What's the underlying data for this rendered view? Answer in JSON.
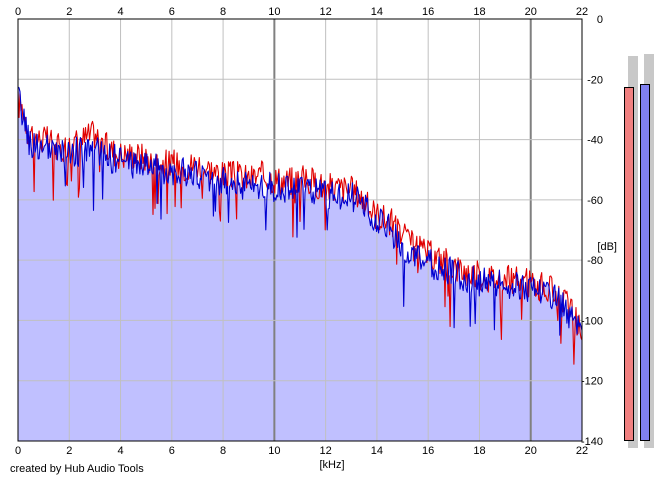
{
  "credit_text": "created by Hub Audio Tools",
  "colors": {
    "background": "#ffffff",
    "plot_border": "#000000",
    "grid": "#c0c0c0",
    "grid_major": "#808080",
    "fill": "#c0c0ff",
    "left_channel": "#e00000",
    "right_channel": "#0000d0",
    "meter_left": "#f08080",
    "meter_right": "#8080f0"
  },
  "chart_data": {
    "type": "line",
    "title": "",
    "xlabel": "[kHz]",
    "ylabel": "[dB]",
    "xlim": [
      0,
      22
    ],
    "ylim": [
      -140,
      0
    ],
    "x_ticks": [
      "0",
      "2",
      "4",
      "6",
      "8",
      "10",
      "12",
      "14",
      "16",
      "18",
      "20",
      "22"
    ],
    "y_ticks": [
      "0",
      "-20",
      "-40",
      "-60",
      "-80",
      "-100",
      "-120",
      "-140"
    ],
    "grid": true,
    "series": [
      {
        "channel": "left",
        "color": "#e00000",
        "x": [
          0,
          0.2,
          0.4,
          0.6,
          0.8,
          1,
          1.3,
          1.6,
          2,
          2.5,
          3,
          3.5,
          4,
          4.5,
          5,
          5.5,
          6,
          6.5,
          7,
          7.5,
          8,
          8.5,
          9,
          9.5,
          10,
          10.5,
          11,
          11.5,
          12,
          12.5,
          13,
          13.3,
          13.6,
          14,
          14.5,
          15,
          15.5,
          16,
          16.5,
          17,
          17.5,
          18,
          18.5,
          19,
          19.5,
          20,
          20.5,
          21,
          21.5,
          22
        ],
        "values": [
          -28,
          -30,
          -37,
          -38,
          -40,
          -40,
          -41,
          -43,
          -42,
          -40,
          -38,
          -43,
          -45,
          -45,
          -46,
          -48,
          -48,
          -49,
          -48,
          -50,
          -52,
          -52,
          -53,
          -52,
          -53,
          -54,
          -53,
          -54,
          -56,
          -56,
          -57,
          -58,
          -62,
          -65,
          -67,
          -72,
          -76,
          -78,
          -80,
          -82,
          -84,
          -85,
          -86,
          -86,
          -87,
          -88,
          -89,
          -91,
          -96,
          -104
        ]
      },
      {
        "channel": "right",
        "color": "#0000d0",
        "x": [
          0,
          0.2,
          0.4,
          0.6,
          0.8,
          1,
          1.3,
          1.6,
          2,
          2.5,
          3,
          3.5,
          4,
          4.5,
          5,
          5.5,
          6,
          6.5,
          7,
          7.5,
          8,
          8.5,
          9,
          9.5,
          10,
          10.5,
          11,
          11.5,
          12,
          12.5,
          13,
          13.3,
          13.6,
          14,
          14.5,
          15,
          15.5,
          16,
          16.5,
          17,
          17.5,
          18,
          18.5,
          19,
          19.5,
          20,
          20.5,
          21,
          21.5,
          22
        ],
        "values": [
          -26,
          -32,
          -40,
          -42,
          -42,
          -43,
          -44,
          -45,
          -44,
          -44,
          -43,
          -46,
          -47,
          -48,
          -48,
          -50,
          -50,
          -51,
          -52,
          -53,
          -54,
          -55,
          -55,
          -55,
          -56,
          -56,
          -57,
          -57,
          -58,
          -58,
          -59,
          -60,
          -64,
          -67,
          -70,
          -76,
          -80,
          -81,
          -83,
          -84,
          -86,
          -87,
          -88,
          -88,
          -89,
          -89,
          -90,
          -92,
          -98,
          -106
        ]
      }
    ],
    "level_meters": [
      {
        "channel": "left",
        "color": "#f08080",
        "level_db": -10
      },
      {
        "channel": "right",
        "color": "#8080f0",
        "level_db": -9
      }
    ]
  }
}
